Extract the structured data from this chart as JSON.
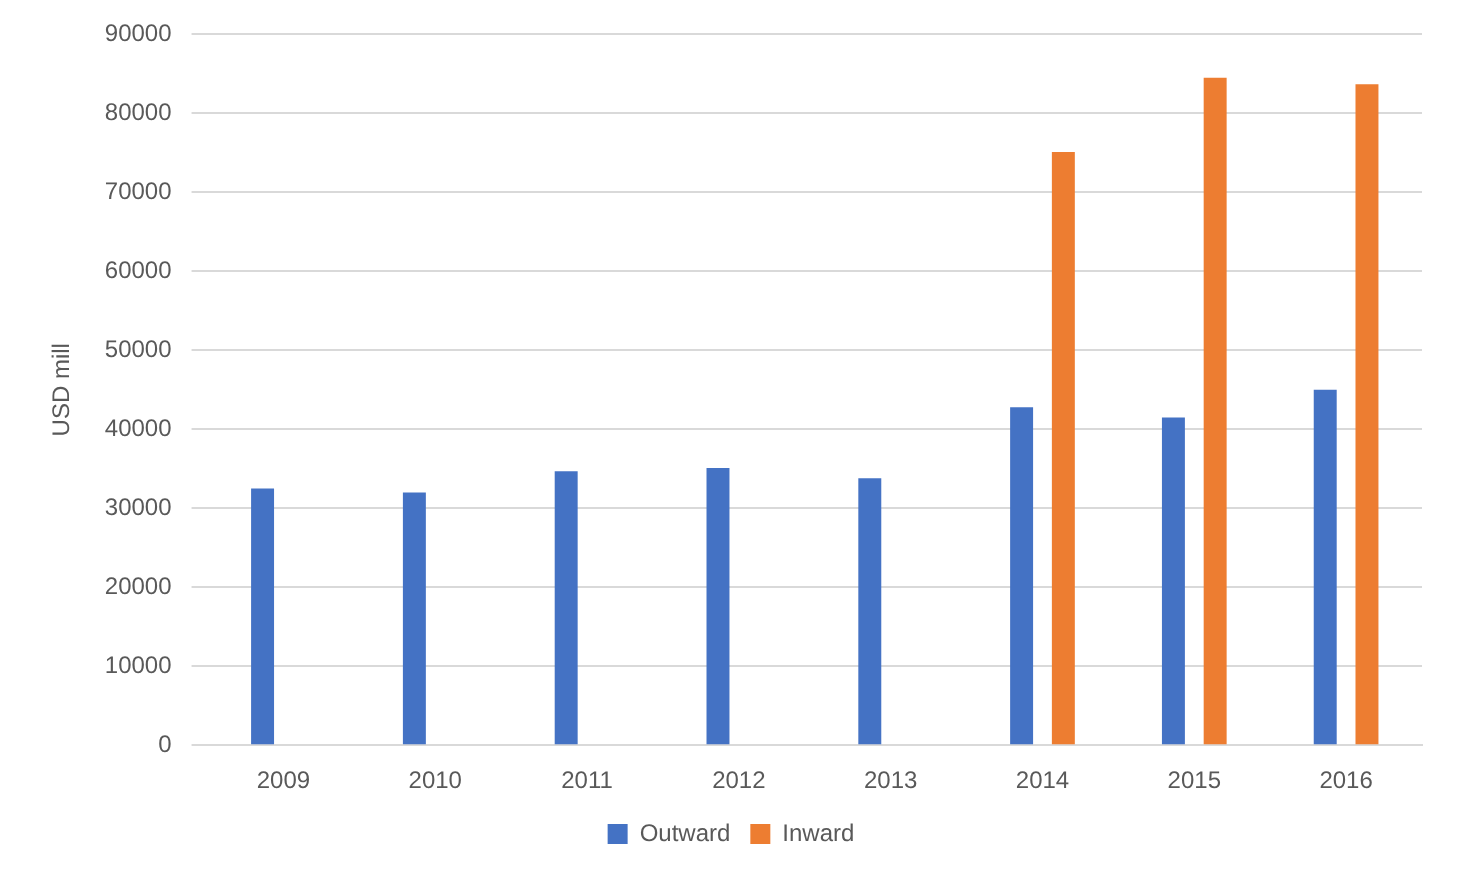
{
  "chart_data": {
    "type": "bar",
    "ylabel": "USD mill",
    "categories": [
      "2009",
      "2010",
      "2011",
      "2012",
      "2013",
      "2014",
      "2015",
      "2016"
    ],
    "series": [
      {
        "name": "Outward",
        "color": "#4472c4",
        "values": [
          32500,
          32000,
          34700,
          35100,
          33800,
          42800,
          41500,
          45000
        ]
      },
      {
        "name": "Inward",
        "color": "#ed7d31",
        "values": [
          null,
          null,
          null,
          null,
          null,
          75100,
          84500,
          83700
        ]
      }
    ],
    "ylim": [
      0,
      90000
    ],
    "yticks": [
      0,
      10000,
      20000,
      30000,
      40000,
      50000,
      60000,
      70000,
      80000,
      90000
    ],
    "grid": "y",
    "legend": "bottom"
  }
}
